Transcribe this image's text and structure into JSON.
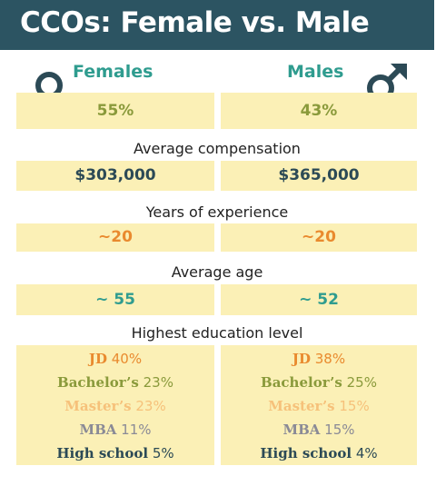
{
  "title": "CCOs: Female vs. Male",
  "genders": {
    "female_label": "Females",
    "male_label": "Males",
    "female_icon": "female-symbol-icon",
    "male_icon": "male-symbol-icon"
  },
  "share": {
    "female": "55%",
    "male": "43%"
  },
  "compensation": {
    "label": "Average compensation",
    "female": "$303,000",
    "male": "$365,000"
  },
  "experience": {
    "label": "Years of experience",
    "female": "~20",
    "male": "~20"
  },
  "age": {
    "label": "Average age",
    "female": "~ 55",
    "male": "~ 52"
  },
  "education": {
    "label": "Highest education level",
    "female": [
      {
        "name": "JD",
        "pct": "40%"
      },
      {
        "name": "Bachelor’s",
        "pct": "23%"
      },
      {
        "name": "Master’s",
        "pct": "23%"
      },
      {
        "name": "MBA",
        "pct": "11%"
      },
      {
        "name": "High school",
        "pct": "5%"
      }
    ],
    "male": [
      {
        "name": "JD",
        "pct": "38%"
      },
      {
        "name": "Bachelor’s",
        "pct": "25%"
      },
      {
        "name": "Master’s",
        "pct": "15%"
      },
      {
        "name": "MBA",
        "pct": "15%"
      },
      {
        "name": "High school",
        "pct": "4%"
      }
    ]
  },
  "colors": {
    "header_bg": "#2c5462",
    "box_bg": "#fbf0b6",
    "teal": "#2f9c8f",
    "olive": "#8a9a3b",
    "navy": "#2c4a56",
    "orange": "#e98a2e",
    "peach": "#f6c17a",
    "gray": "#8a8a96"
  }
}
